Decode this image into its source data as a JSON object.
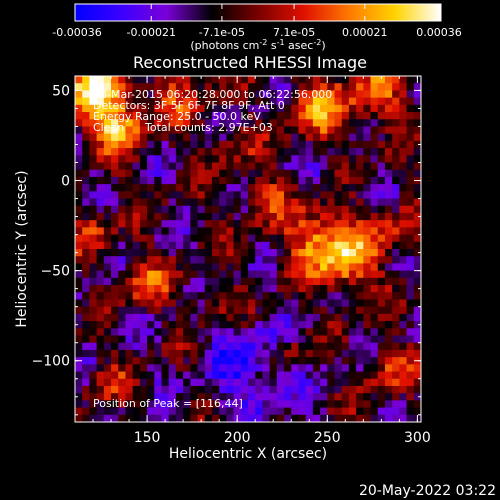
{
  "chart_data": {
    "type": "heatmap",
    "title": "Reconstructed RHESSI Image",
    "xlabel": "Heliocentric X (arcsec)",
    "ylabel": "Heliocentric Y (arcsec)",
    "xlim": [
      110,
      302
    ],
    "ylim": [
      -134,
      58
    ],
    "x_ticks": [
      150,
      200,
      250,
      300
    ],
    "y_ticks": [
      50,
      0,
      -50,
      -100
    ],
    "colorbar": {
      "range": [
        -0.00036,
        0.00036
      ],
      "tick_values": [
        -0.00036,
        -0.00021,
        -7.1e-05,
        7.1e-05,
        0.00021,
        0.00036
      ],
      "tick_labels": [
        "-0.00036",
        "-0.00021",
        "-7.1e-05",
        "7.1e-05",
        "0.00021",
        "0.00036"
      ],
      "units": "(photons cm-2 s-1 asec-2)",
      "units_base": "(photons cm",
      "units_exp1": "-2",
      "units_mid": " s",
      "units_exp2": "-1",
      "units_mid2": " asec",
      "units_exp3": "-2",
      "units_end": ")",
      "stops": [
        "#0000ff",
        "#3a00ff",
        "#7a00d8",
        "#000000",
        "#7a0000",
        "#e01000",
        "#ff7a00",
        "#ffd400",
        "#ffffff"
      ]
    },
    "annotations": {
      "time_range": "28-Mar-2015 06:20:28.000 to 06:22:56.000",
      "detectors": "Detectors: 3F 5F 6F 7F 8F 9F, Att 0",
      "energy": "Energy Range: 25.0 - 50.0 keV",
      "clean": "Clean",
      "counts": "Total counts: 2.97E+03",
      "peak": "Position of Peak = [116,44]"
    },
    "peak": [
      116,
      44
    ],
    "grid": false
  },
  "footer": {
    "timestamp": "20-May-2022 03:22"
  }
}
